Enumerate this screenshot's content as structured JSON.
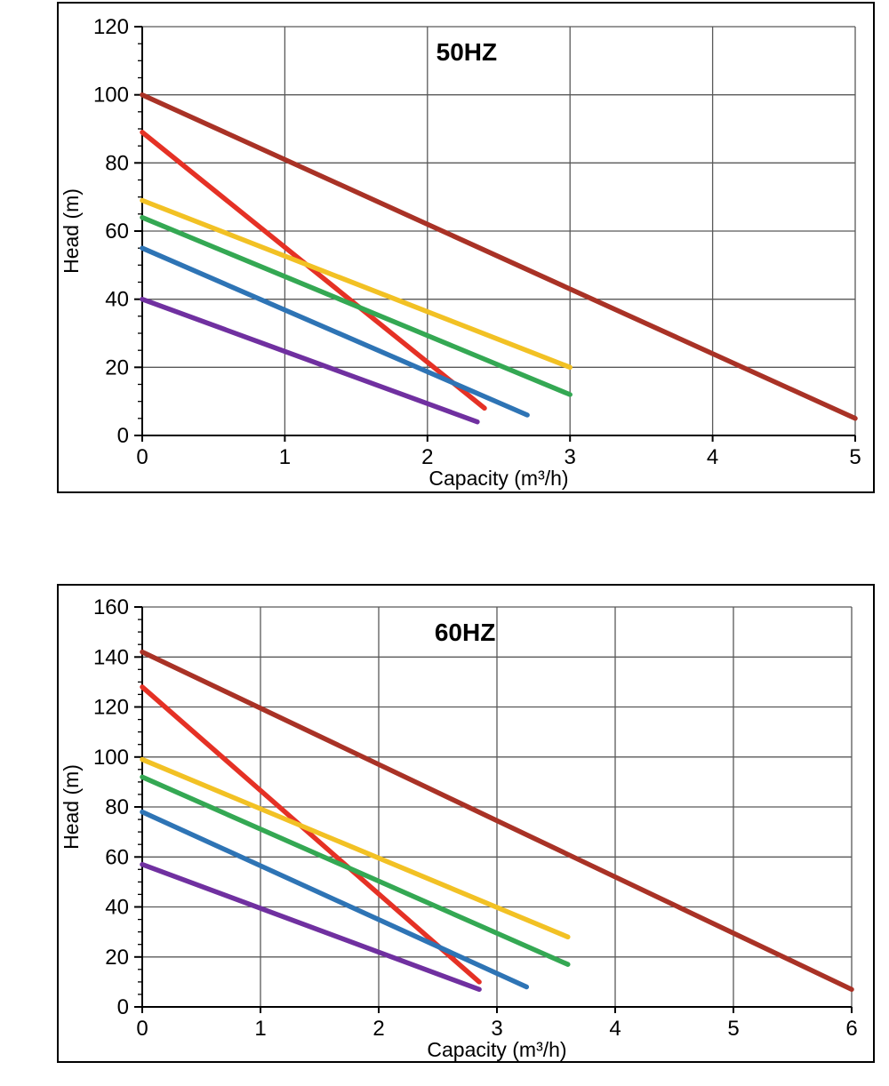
{
  "page": {
    "background": "#ffffff",
    "grid_color": "#595959",
    "axis_color": "#000000",
    "text_color": "#000000"
  },
  "chart_data": [
    {
      "type": "line",
      "title": "50HZ",
      "xlabel": "Capacity (m³/h)",
      "ylabel": "Head (m)",
      "xlim": [
        0,
        5
      ],
      "xstep": 1,
      "ylim": [
        0,
        120
      ],
      "ystep": 20,
      "minor_step": 5,
      "grid": true,
      "legend": "none",
      "series": [
        {
          "name": "curve-darkred",
          "color": "#A93226",
          "points": [
            [
              0,
              100
            ],
            [
              5,
              5
            ]
          ]
        },
        {
          "name": "curve-red",
          "color": "#E53125",
          "points": [
            [
              0,
              89
            ],
            [
              2.4,
              8
            ]
          ]
        },
        {
          "name": "curve-yellow",
          "color": "#F2C124",
          "points": [
            [
              0,
              69
            ],
            [
              3,
              20
            ]
          ]
        },
        {
          "name": "curve-green",
          "color": "#34A853",
          "points": [
            [
              0,
              64
            ],
            [
              3,
              12
            ]
          ]
        },
        {
          "name": "curve-blue",
          "color": "#2E74B5",
          "points": [
            [
              0,
              55
            ],
            [
              2.7,
              6
            ]
          ]
        },
        {
          "name": "curve-purple",
          "color": "#7030A0",
          "points": [
            [
              0,
              40
            ],
            [
              2.35,
              4
            ]
          ]
        }
      ]
    },
    {
      "type": "line",
      "title": "60HZ",
      "xlabel": "Capacity (m³/h)",
      "ylabel": "Head (m)",
      "xlim": [
        0,
        6
      ],
      "xstep": 1,
      "ylim": [
        0,
        160
      ],
      "ystep": 20,
      "minor_step": 5,
      "grid": true,
      "legend": "none",
      "series": [
        {
          "name": "curve-darkred",
          "color": "#A93226",
          "points": [
            [
              0,
              142
            ],
            [
              6,
              7
            ]
          ]
        },
        {
          "name": "curve-red",
          "color": "#E53125",
          "points": [
            [
              0,
              128
            ],
            [
              2.85,
              10
            ]
          ]
        },
        {
          "name": "curve-yellow",
          "color": "#F2C124",
          "points": [
            [
              0,
              99
            ],
            [
              3.6,
              28
            ]
          ]
        },
        {
          "name": "curve-green",
          "color": "#34A853",
          "points": [
            [
              0,
              92
            ],
            [
              3.6,
              17
            ]
          ]
        },
        {
          "name": "curve-blue",
          "color": "#2E74B5",
          "points": [
            [
              0,
              78
            ],
            [
              3.25,
              8
            ]
          ]
        },
        {
          "name": "curve-purple",
          "color": "#7030A0",
          "points": [
            [
              0,
              57
            ],
            [
              2.85,
              7
            ]
          ]
        }
      ]
    }
  ]
}
